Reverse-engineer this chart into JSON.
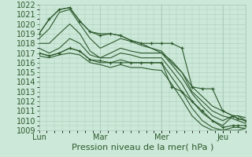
{
  "title": "Pression niveau de la mer( hPa )",
  "bg_color": "#cce8d8",
  "plot_bg_color": "#cce8d8",
  "grid_color": "#aaccbb",
  "line_color": "#2d5a2d",
  "ylim": [
    1009,
    1022
  ],
  "yticks": [
    1009,
    1010,
    1011,
    1012,
    1013,
    1014,
    1015,
    1016,
    1017,
    1018,
    1019,
    1020,
    1021,
    1022
  ],
  "day_labels": [
    "Lun",
    "Mar",
    "Mer",
    "Jeu"
  ],
  "day_positions": [
    0.0,
    0.333,
    0.667,
    1.0
  ],
  "xlim": [
    0.0,
    1.125
  ],
  "lines": [
    [
      0.0,
      1019,
      0.055,
      1020.5,
      0.11,
      1021.5,
      0.167,
      1021.7,
      0.222,
      1020.3,
      0.278,
      1019.2,
      0.333,
      1019,
      0.389,
      1019,
      0.444,
      1018.8,
      0.5,
      1018.3,
      0.556,
      1018,
      0.611,
      1017.5,
      0.667,
      1017,
      0.722,
      1016.2,
      0.778,
      1015,
      0.833,
      1013.5,
      0.889,
      1012.5,
      0.944,
      1011.5,
      1.0,
      1011,
      1.056,
      1010.5,
      1.083,
      1010.2,
      1.125,
      1010
    ],
    [
      0.0,
      1018.5,
      0.055,
      1019.5,
      0.11,
      1021.2,
      0.167,
      1021.5,
      0.222,
      1020,
      0.278,
      1018.5,
      0.333,
      1017.5,
      0.389,
      1018,
      0.444,
      1018.5,
      0.5,
      1018.2,
      0.556,
      1017.8,
      0.611,
      1017.5,
      0.667,
      1017.2,
      0.722,
      1016,
      0.778,
      1015,
      0.833,
      1013,
      0.889,
      1012,
      0.944,
      1011,
      1.0,
      1010.5,
      1.056,
      1010.2,
      1.083,
      1010,
      1.125,
      1009.7
    ],
    [
      0.0,
      1018,
      0.055,
      1018,
      0.11,
      1019,
      0.167,
      1020,
      0.222,
      1019,
      0.278,
      1017.2,
      0.333,
      1016.5,
      0.389,
      1017,
      0.444,
      1017.5,
      0.5,
      1017.2,
      0.556,
      1017,
      0.611,
      1017,
      0.667,
      1017,
      0.722,
      1015.8,
      0.778,
      1014.5,
      0.833,
      1012.8,
      0.889,
      1011.5,
      0.944,
      1010.5,
      1.0,
      1010,
      1.056,
      1010.5,
      1.083,
      1010.5,
      1.125,
      1010
    ],
    [
      0.0,
      1017.5,
      0.055,
      1017,
      0.11,
      1017.5,
      0.167,
      1018.5,
      0.222,
      1018,
      0.278,
      1016.8,
      0.333,
      1016.5,
      0.389,
      1016.5,
      0.444,
      1017,
      0.5,
      1016.8,
      0.556,
      1016.5,
      0.611,
      1016.5,
      0.667,
      1016.5,
      0.722,
      1015.2,
      0.778,
      1013.8,
      0.833,
      1012,
      0.889,
      1010.8,
      0.944,
      1010,
      1.0,
      1009.5,
      1.056,
      1010.5,
      1.083,
      1010.5,
      1.125,
      1010.3
    ],
    [
      0.0,
      1017,
      0.055,
      1016.7,
      0.11,
      1017,
      0.167,
      1017.5,
      0.222,
      1017.2,
      0.278,
      1016.3,
      0.333,
      1016,
      0.389,
      1016,
      0.444,
      1016.3,
      0.5,
      1016,
      0.556,
      1016,
      0.611,
      1016,
      0.667,
      1016,
      0.722,
      1014.5,
      0.778,
      1013,
      0.833,
      1011.3,
      0.889,
      1010,
      0.944,
      1009.3,
      1.0,
      1009,
      1.056,
      1009.3,
      1.083,
      1009.3,
      1.125,
      1009.2
    ],
    [
      0.0,
      1016.7,
      0.055,
      1016.5,
      0.11,
      1016.8,
      0.167,
      1017,
      0.222,
      1016.8,
      0.278,
      1016,
      0.333,
      1015.8,
      0.389,
      1015.5,
      0.444,
      1015.8,
      0.5,
      1015.5,
      0.556,
      1015.5,
      0.611,
      1015.3,
      0.667,
      1015.2,
      0.722,
      1013.8,
      0.778,
      1012.2,
      0.833,
      1010.5,
      0.889,
      1009.5,
      0.944,
      1009,
      1.0,
      1009,
      1.056,
      1009,
      1.083,
      1009,
      1.125,
      1009.2
    ]
  ],
  "marker_lines": [
    [
      0.0,
      1019,
      0.055,
      1020.5,
      0.11,
      1021.5,
      0.167,
      1021.7,
      0.222,
      1020.3,
      0.278,
      1019.2,
      0.333,
      1018.8,
      0.389,
      1019,
      0.444,
      1018.8,
      0.5,
      1018.3,
      0.556,
      1018,
      0.611,
      1018,
      0.667,
      1018,
      0.722,
      1018,
      0.778,
      1017.5,
      0.833,
      1013.5,
      0.889,
      1013.3,
      0.944,
      1013.3,
      1.0,
      1011,
      1.056,
      1010.5,
      1.083,
      1010.2,
      1.125,
      1010
    ],
    [
      0.0,
      1017,
      0.055,
      1016.7,
      0.11,
      1017,
      0.167,
      1017.5,
      0.222,
      1017.2,
      0.278,
      1016.3,
      0.333,
      1016.2,
      0.389,
      1016,
      0.444,
      1016,
      0.5,
      1016,
      0.556,
      1016,
      0.611,
      1016,
      0.667,
      1016,
      0.722,
      1013.5,
      0.778,
      1013,
      0.833,
      1012,
      0.889,
      1011,
      0.944,
      1010,
      1.0,
      1009.3,
      1.056,
      1009.5,
      1.083,
      1009.5,
      1.125,
      1009.5
    ]
  ],
  "font_size_label": 8,
  "font_size_tick": 7,
  "tick_color": "#2d5a2d",
  "label_color": "#2d5a2d"
}
